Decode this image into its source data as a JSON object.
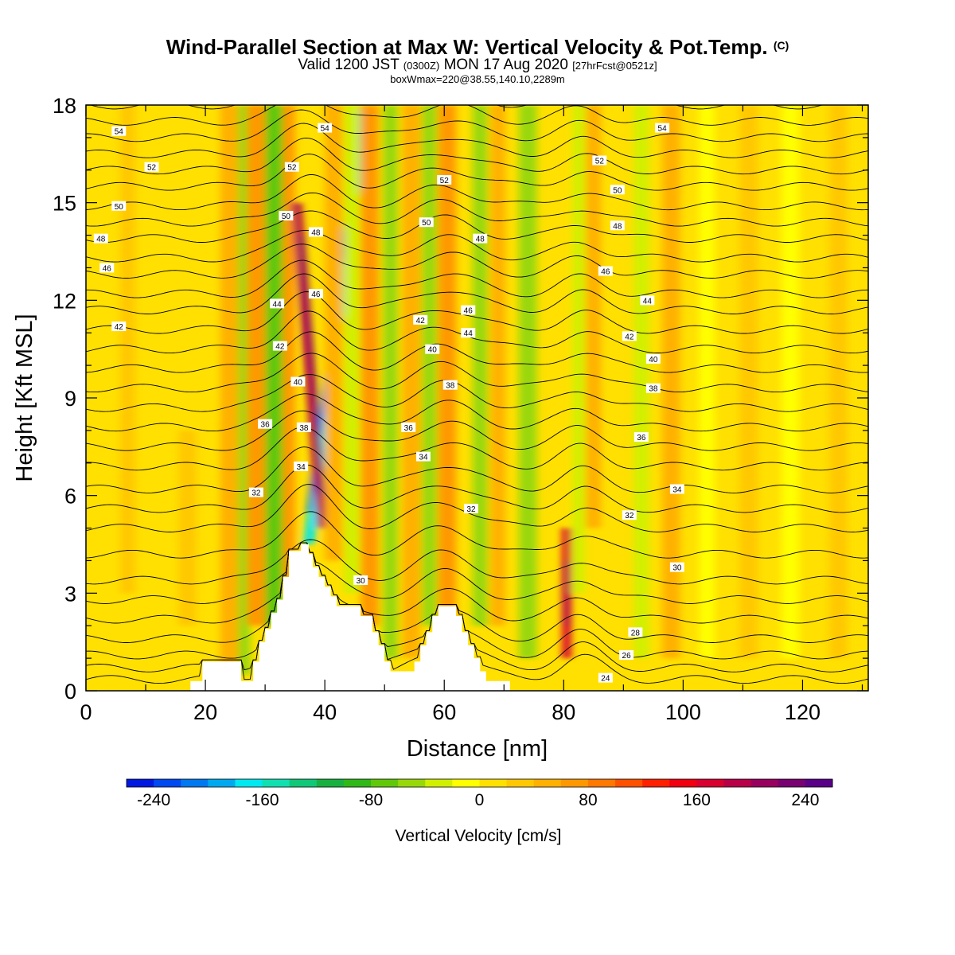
{
  "header": {
    "title": "Wind-Parallel Section at Max W: Vertical Velocity & Pot.Temp.",
    "title_note": "(C)",
    "valid_main_a": "Valid 1200 JST",
    "valid_small_a": "(0300Z)",
    "valid_main_b": "MON 17 Aug 2020",
    "valid_small_b": "[27hrFcst@0521z]",
    "box_info": "boxWmax=220@38.55,140.10,2289m"
  },
  "chart_data": {
    "type": "heatmap",
    "xlabel": "Distance [nm]",
    "ylabel": "Height [Kft MSL]",
    "xlim": [
      0,
      131
    ],
    "ylim": [
      0,
      18
    ],
    "x_ticks": [
      0,
      20,
      40,
      60,
      80,
      100,
      120
    ],
    "y_ticks": [
      0,
      3,
      6,
      9,
      12,
      15,
      18
    ],
    "colorbar": {
      "label": "Vertical Velocity [cm/s]",
      "range": [
        -260,
        260
      ],
      "step": 20,
      "tick_values": [
        -240,
        -160,
        -80,
        0,
        80,
        160,
        240
      ],
      "tick_labels": [
        "-240",
        "-160",
        "-80",
        "0",
        "80",
        "160",
        "240"
      ],
      "colors": [
        "#0018e0",
        "#0048f0",
        "#0078f0",
        "#00a8f0",
        "#00e8f0",
        "#10e0b0",
        "#10c878",
        "#18b040",
        "#30b818",
        "#60c808",
        "#98d808",
        "#d0f000",
        "#ffff00",
        "#ffe000",
        "#ffc800",
        "#ffb000",
        "#ff9800",
        "#ff7800",
        "#ff5000",
        "#ff2000",
        "#f00010",
        "#d80030",
        "#b80048",
        "#980060",
        "#780070",
        "#5a0088"
      ]
    },
    "background_value": 10,
    "velocity_bands": [
      {
        "x": 7,
        "w": 2.5,
        "y0": 3,
        "y1": 18,
        "v": 25
      },
      {
        "x": 17,
        "w": 3,
        "y0": 2,
        "y1": 8,
        "v": 20
      },
      {
        "x": 24,
        "w": 3,
        "y0": 0.5,
        "y1": 18,
        "v": 40,
        "tilt": 0.0
      },
      {
        "x": 26.5,
        "w": 2,
        "y0": 0.5,
        "y1": 18,
        "v": -60,
        "tilt": 0.0
      },
      {
        "x": 28.5,
        "w": 3,
        "y0": 2,
        "y1": 18,
        "v": 60
      },
      {
        "x": 31.5,
        "w": 3,
        "y0": 2,
        "y1": 18,
        "v": -70
      },
      {
        "x": 34,
        "w": 2,
        "y0": 3,
        "y1": 18,
        "v": 60
      },
      {
        "x": 37.3,
        "w": 1.8,
        "y0": 4.5,
        "y1": 18,
        "v": -170,
        "tilt": 0.13
      },
      {
        "x": 39.6,
        "w": 1.7,
        "y0": 5,
        "y1": 15,
        "v": 190,
        "tilt": -0.08
      },
      {
        "x": 41.5,
        "w": 3,
        "y0": 4,
        "y1": 18,
        "v": 50
      },
      {
        "x": 44.5,
        "w": 2.5,
        "y0": 3,
        "y1": 18,
        "v": -40
      },
      {
        "x": 47.5,
        "w": 3,
        "y0": 2,
        "y1": 18,
        "v": 60
      },
      {
        "x": 51,
        "w": 2.5,
        "y0": 1,
        "y1": 18,
        "v": -50
      },
      {
        "x": 54.5,
        "w": 3,
        "y0": 1,
        "y1": 18,
        "v": 50
      },
      {
        "x": 57.5,
        "w": 2.5,
        "y0": 2,
        "y1": 18,
        "v": -50
      },
      {
        "x": 60.5,
        "w": 3,
        "y0": 2,
        "y1": 18,
        "v": 60
      },
      {
        "x": 66,
        "w": 2.5,
        "y0": 2,
        "y1": 18,
        "v": -60
      },
      {
        "x": 69,
        "w": 2.5,
        "y0": 2,
        "y1": 18,
        "v": 50
      },
      {
        "x": 74,
        "w": 3,
        "y0": 1,
        "y1": 18,
        "v": -50
      },
      {
        "x": 80.5,
        "w": 1.5,
        "y0": 1,
        "y1": 5,
        "v": 160
      },
      {
        "x": 82.5,
        "w": 2,
        "y0": 3,
        "y1": 18,
        "v": -40
      },
      {
        "x": 85,
        "w": 2.5,
        "y0": 5,
        "y1": 18,
        "v": 40
      },
      {
        "x": 93,
        "w": 2.5,
        "y0": 1,
        "y1": 18,
        "v": -30
      },
      {
        "x": 98,
        "w": 3,
        "y0": 1,
        "y1": 18,
        "v": 40
      },
      {
        "x": 104,
        "w": 2.5,
        "y0": 1,
        "y1": 18,
        "v": -20
      },
      {
        "x": 111,
        "w": 3,
        "y0": 1,
        "y1": 18,
        "v": 30
      },
      {
        "x": 118,
        "w": 3,
        "y0": 1,
        "y1": 18,
        "v": -15
      },
      {
        "x": 126,
        "w": 3,
        "y0": 1,
        "y1": 18,
        "v": 25
      }
    ],
    "terrain": [
      [
        0,
        0
      ],
      [
        17.5,
        0
      ],
      [
        17.5,
        0.3
      ],
      [
        19.5,
        0.3
      ],
      [
        19.5,
        0.9
      ],
      [
        26,
        0.9
      ],
      [
        26,
        0.3
      ],
      [
        28,
        0.3
      ],
      [
        28,
        0.9
      ],
      [
        29,
        0.9
      ],
      [
        29,
        1.5
      ],
      [
        30,
        1.5
      ],
      [
        30,
        1.9
      ],
      [
        31,
        1.9
      ],
      [
        31,
        2.4
      ],
      [
        32,
        2.4
      ],
      [
        32,
        2.8
      ],
      [
        33,
        2.8
      ],
      [
        33,
        3.5
      ],
      [
        34,
        3.5
      ],
      [
        34,
        4.3
      ],
      [
        36,
        4.3
      ],
      [
        36,
        4.5
      ],
      [
        37.3,
        4.5
      ],
      [
        37.3,
        4.2
      ],
      [
        38,
        4.2
      ],
      [
        38,
        3.8
      ],
      [
        39,
        3.8
      ],
      [
        39,
        3.5
      ],
      [
        40,
        3.5
      ],
      [
        40,
        3.2
      ],
      [
        41,
        3.2
      ],
      [
        41,
        2.9
      ],
      [
        42,
        2.9
      ],
      [
        42,
        2.6
      ],
      [
        46,
        2.6
      ],
      [
        46,
        2.3
      ],
      [
        48,
        2.3
      ],
      [
        48,
        1.8
      ],
      [
        49,
        1.8
      ],
      [
        49,
        1.4
      ],
      [
        50,
        1.4
      ],
      [
        50,
        0.9
      ],
      [
        51,
        0.9
      ],
      [
        51,
        0.6
      ],
      [
        55,
        0.6
      ],
      [
        55,
        0.9
      ],
      [
        56,
        0.9
      ],
      [
        56,
        1.4
      ],
      [
        57,
        1.4
      ],
      [
        57,
        1.8
      ],
      [
        58,
        1.8
      ],
      [
        58,
        2.3
      ],
      [
        59,
        2.3
      ],
      [
        59,
        2.6
      ],
      [
        62,
        2.6
      ],
      [
        62,
        2.3
      ],
      [
        63,
        2.3
      ],
      [
        63,
        1.8
      ],
      [
        64,
        1.8
      ],
      [
        64,
        1.4
      ],
      [
        65,
        1.4
      ],
      [
        65,
        1.0
      ],
      [
        66,
        1.0
      ],
      [
        66,
        0.6
      ],
      [
        67,
        0.6
      ],
      [
        67,
        0.3
      ],
      [
        71,
        0.3
      ],
      [
        71,
        0
      ],
      [
        131,
        0
      ]
    ],
    "isentropes": {
      "levels": [
        24,
        25,
        26,
        27,
        28,
        29,
        30,
        31,
        32,
        33,
        34,
        35,
        36,
        37,
        38,
        39,
        40,
        41,
        42,
        43,
        44,
        45,
        46,
        47,
        48,
        49,
        50,
        51,
        52,
        53,
        54,
        55
      ],
      "base_height": [
        0.35,
        0.7,
        1.1,
        1.6,
        2.2,
        2.8,
        3.4,
        4.2,
        5.0,
        5.6,
        6.2,
        6.9,
        7.5,
        8.1,
        8.7,
        9.3,
        9.9,
        10.5,
        11.1,
        11.7,
        12.2,
        12.8,
        13.3,
        13.9,
        14.4,
        14.9,
        15.5,
        16.0,
        16.5,
        17.0,
        17.5,
        18.0
      ],
      "label_values": [
        54,
        52,
        50,
        48,
        46,
        42,
        54,
        52,
        50,
        48,
        46,
        44,
        42,
        40,
        38,
        36,
        34,
        32,
        52,
        50,
        48,
        46,
        44,
        42,
        40,
        38,
        36,
        34,
        32,
        30,
        54,
        52,
        50,
        48,
        46,
        44,
        42,
        40,
        38,
        36,
        34,
        32,
        30,
        28,
        26,
        24
      ],
      "labels": [
        {
          "x": 5.5,
          "y": 17.2,
          "t": "54"
        },
        {
          "x": 11,
          "y": 16.1,
          "t": "52"
        },
        {
          "x": 5.5,
          "y": 14.9,
          "t": "50"
        },
        {
          "x": 2.5,
          "y": 13.9,
          "t": "48"
        },
        {
          "x": 3.5,
          "y": 13.0,
          "t": "46"
        },
        {
          "x": 5.5,
          "y": 11.2,
          "t": "42"
        },
        {
          "x": 40,
          "y": 17.3,
          "t": "54"
        },
        {
          "x": 34.5,
          "y": 16.1,
          "t": "52"
        },
        {
          "x": 33.5,
          "y": 14.6,
          "t": "50"
        },
        {
          "x": 38.5,
          "y": 14.1,
          "t": "48"
        },
        {
          "x": 38.5,
          "y": 12.2,
          "t": "46"
        },
        {
          "x": 32,
          "y": 11.9,
          "t": "44"
        },
        {
          "x": 32.5,
          "y": 10.6,
          "t": "42"
        },
        {
          "x": 35.5,
          "y": 9.5,
          "t": "40"
        },
        {
          "x": 36.5,
          "y": 8.1,
          "t": "38"
        },
        {
          "x": 30,
          "y": 8.2,
          "t": "36"
        },
        {
          "x": 36,
          "y": 6.9,
          "t": "34"
        },
        {
          "x": 28.5,
          "y": 6.1,
          "t": "32"
        },
        {
          "x": 60,
          "y": 15.7,
          "t": "52"
        },
        {
          "x": 57,
          "y": 14.4,
          "t": "50"
        },
        {
          "x": 66,
          "y": 13.9,
          "t": "48"
        },
        {
          "x": 64,
          "y": 11.7,
          "t": "46"
        },
        {
          "x": 64,
          "y": 11.0,
          "t": "44"
        },
        {
          "x": 56,
          "y": 11.4,
          "t": "42"
        },
        {
          "x": 58,
          "y": 10.5,
          "t": "40"
        },
        {
          "x": 61,
          "y": 9.4,
          "t": "38"
        },
        {
          "x": 54,
          "y": 8.1,
          "t": "36"
        },
        {
          "x": 56.5,
          "y": 7.2,
          "t": "34"
        },
        {
          "x": 64.5,
          "y": 5.6,
          "t": "32"
        },
        {
          "x": 46,
          "y": 3.4,
          "t": "30"
        },
        {
          "x": 96.5,
          "y": 17.3,
          "t": "54"
        },
        {
          "x": 86,
          "y": 16.3,
          "t": "52"
        },
        {
          "x": 89,
          "y": 15.4,
          "t": "50"
        },
        {
          "x": 89,
          "y": 14.3,
          "t": "48"
        },
        {
          "x": 87,
          "y": 12.9,
          "t": "46"
        },
        {
          "x": 94,
          "y": 12.0,
          "t": "44"
        },
        {
          "x": 91,
          "y": 10.9,
          "t": "42"
        },
        {
          "x": 95,
          "y": 10.2,
          "t": "40"
        },
        {
          "x": 95,
          "y": 9.3,
          "t": "38"
        },
        {
          "x": 93,
          "y": 7.8,
          "t": "36"
        },
        {
          "x": 99,
          "y": 6.2,
          "t": "34"
        },
        {
          "x": 91,
          "y": 5.4,
          "t": "32"
        },
        {
          "x": 99,
          "y": 3.8,
          "t": "30"
        },
        {
          "x": 92,
          "y": 1.8,
          "t": "28"
        },
        {
          "x": 90.5,
          "y": 1.1,
          "t": "26"
        },
        {
          "x": 87,
          "y": 0.4,
          "t": "24"
        }
      ]
    }
  }
}
